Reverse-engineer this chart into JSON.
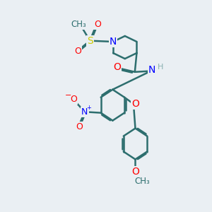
{
  "background_color": "#eaeff3",
  "bond_color": "#2d6e6e",
  "bond_width": 1.8,
  "atom_colors": {
    "O": "#ff0000",
    "N": "#0000ff",
    "S": "#cccc00",
    "C": "#2d6e6e",
    "H": "#8ab0b0"
  },
  "font_size": 9,
  "fig_width": 3.0,
  "fig_height": 3.0,
  "dpi": 100
}
